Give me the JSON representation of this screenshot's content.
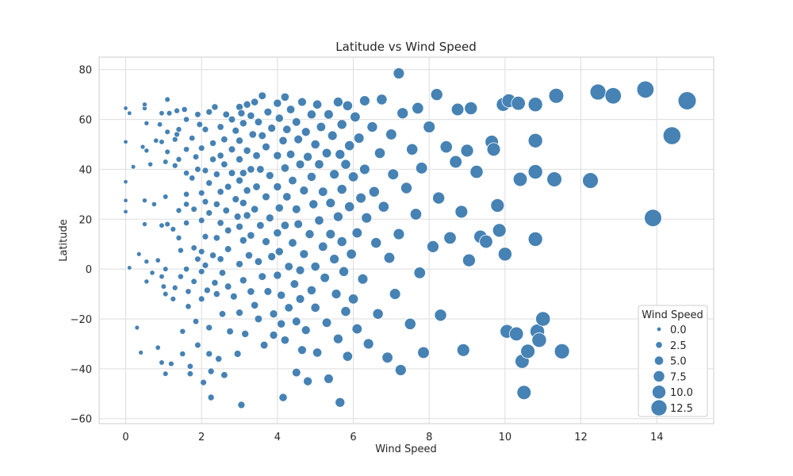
{
  "chart_data": {
    "type": "scatter",
    "title": "Latitude vs Wind Speed",
    "xlabel": "Wind Speed",
    "ylabel": "Latitude",
    "xlim": [
      -0.7,
      15.5
    ],
    "ylim": [
      -62,
      85
    ],
    "xticks": [
      0,
      2,
      4,
      6,
      8,
      10,
      12,
      14
    ],
    "yticks": [
      -60,
      -40,
      -20,
      0,
      20,
      40,
      60,
      80
    ],
    "xtick_labels": [
      "0",
      "2",
      "4",
      "6",
      "8",
      "10",
      "12",
      "14"
    ],
    "ytick_labels": [
      "−60",
      "−40",
      "−20",
      "0",
      "20",
      "40",
      "60",
      "80"
    ],
    "grid": true,
    "marker_color": "#4682b4",
    "size_encoding": "Wind Speed",
    "legend": {
      "title": "Wind Speed",
      "placement": "lower-right",
      "entries": [
        {
          "label": "0.0",
          "value": 0.0
        },
        {
          "label": "2.5",
          "value": 2.5
        },
        {
          "label": "5.0",
          "value": 5.0
        },
        {
          "label": "7.5",
          "value": 7.5
        },
        {
          "label": "10.0",
          "value": 10.0
        },
        {
          "label": "12.5",
          "value": 12.5
        }
      ]
    },
    "points": [
      [
        0.0,
        64.5
      ],
      [
        0.0,
        51.0
      ],
      [
        0.0,
        35.0
      ],
      [
        0.0,
        27.5
      ],
      [
        0.0,
        23.0
      ],
      [
        0.1,
        0.5
      ],
      [
        0.1,
        62.5
      ],
      [
        0.2,
        41.0
      ],
      [
        0.3,
        -23.5
      ],
      [
        0.35,
        6.0
      ],
      [
        0.4,
        -33.5
      ],
      [
        0.5,
        64.5
      ],
      [
        0.5,
        66.0
      ],
      [
        0.45,
        49.0
      ],
      [
        0.55,
        47.5
      ],
      [
        0.55,
        58.5
      ],
      [
        0.5,
        27.5
      ],
      [
        0.5,
        18.0
      ],
      [
        0.55,
        3.0
      ],
      [
        0.55,
        -5.0
      ],
      [
        0.65,
        42.0
      ],
      [
        0.7,
        -1.5
      ],
      [
        0.75,
        26.0
      ],
      [
        0.8,
        51.5
      ],
      [
        0.85,
        3.5
      ],
      [
        0.85,
        -31.5
      ],
      [
        0.9,
        58.0
      ],
      [
        0.95,
        62.5
      ],
      [
        0.95,
        51.0
      ],
      [
        0.95,
        17.5
      ],
      [
        0.95,
        -3.0
      ],
      [
        0.95,
        -37.5
      ],
      [
        1.0,
        -7.0
      ],
      [
        1.05,
        43.0
      ],
      [
        1.05,
        29.0
      ],
      [
        1.05,
        0.0
      ],
      [
        1.05,
        -10.0
      ],
      [
        1.05,
        -42.0
      ],
      [
        1.1,
        68.0
      ],
      [
        1.1,
        55.0
      ],
      [
        1.1,
        47.0
      ],
      [
        1.1,
        18.0
      ],
      [
        1.15,
        62.5
      ],
      [
        1.2,
        -38.0
      ],
      [
        1.25,
        16.0
      ],
      [
        1.25,
        -12.0
      ],
      [
        1.3,
        -7.5
      ],
      [
        1.3,
        52.0
      ],
      [
        1.3,
        41.5
      ],
      [
        1.35,
        63.5
      ],
      [
        1.35,
        54.0
      ],
      [
        1.4,
        56.0
      ],
      [
        1.4,
        44.0
      ],
      [
        1.4,
        23.5
      ],
      [
        1.4,
        12.5
      ],
      [
        1.45,
        7.5
      ],
      [
        1.45,
        -3.0
      ],
      [
        1.5,
        -25.0
      ],
      [
        1.5,
        -34.0
      ],
      [
        1.55,
        64.0
      ],
      [
        1.6,
        60.0
      ],
      [
        1.6,
        48.0
      ],
      [
        1.6,
        38.5
      ],
      [
        1.6,
        30.0
      ],
      [
        1.6,
        26.0
      ],
      [
        1.6,
        18.5
      ],
      [
        1.6,
        0.0
      ],
      [
        1.65,
        -9.0
      ],
      [
        1.65,
        -15.0
      ],
      [
        1.7,
        -39.0
      ],
      [
        1.7,
        -42.0
      ],
      [
        1.75,
        52.5
      ],
      [
        1.75,
        36.5
      ],
      [
        1.8,
        24.0
      ],
      [
        1.8,
        8.5
      ],
      [
        1.8,
        -5.0
      ],
      [
        1.85,
        45.0
      ],
      [
        1.85,
        -21.0
      ],
      [
        1.9,
        62.0
      ],
      [
        1.9,
        40.0
      ],
      [
        1.9,
        4.0
      ],
      [
        1.9,
        -30.5
      ],
      [
        1.95,
        58.0
      ],
      [
        2.0,
        48.5
      ],
      [
        2.0,
        30.5
      ],
      [
        2.0,
        19.5
      ],
      [
        2.0,
        7.0
      ],
      [
        2.0,
        -1.0
      ],
      [
        2.0,
        -12.0
      ],
      [
        2.05,
        -45.5
      ],
      [
        2.1,
        56.0
      ],
      [
        2.1,
        39.5
      ],
      [
        2.1,
        27.0
      ],
      [
        2.1,
        13.0
      ],
      [
        2.1,
        1.5
      ],
      [
        2.15,
        -8.5
      ],
      [
        2.2,
        63.0
      ],
      [
        2.2,
        34.5
      ],
      [
        2.2,
        22.5
      ],
      [
        2.2,
        -23.5
      ],
      [
        2.2,
        -34.0
      ],
      [
        2.25,
        -41.0
      ],
      [
        2.25,
        -51.5
      ],
      [
        2.3,
        50.5
      ],
      [
        2.3,
        44.0
      ],
      [
        2.3,
        5.5
      ],
      [
        2.35,
        65.0
      ],
      [
        2.35,
        -5.5
      ],
      [
        2.4,
        38.0
      ],
      [
        2.4,
        26.0
      ],
      [
        2.4,
        12.5
      ],
      [
        2.4,
        -10.0
      ],
      [
        2.45,
        -36.0
      ],
      [
        2.5,
        57.0
      ],
      [
        2.5,
        45.5
      ],
      [
        2.5,
        31.0
      ],
      [
        2.5,
        18.5
      ],
      [
        2.5,
        4.0
      ],
      [
        2.55,
        -1.5
      ],
      [
        2.55,
        -18.0
      ],
      [
        2.6,
        52.0
      ],
      [
        2.6,
        42.0
      ],
      [
        2.6,
        -42.5
      ],
      [
        2.65,
        62.0
      ],
      [
        2.65,
        23.5
      ],
      [
        2.7,
        33.0
      ],
      [
        2.7,
        15.5
      ],
      [
        2.7,
        8.0
      ],
      [
        2.7,
        -7.0
      ],
      [
        2.75,
        -25.0
      ],
      [
        2.8,
        60.0
      ],
      [
        2.8,
        48.0
      ],
      [
        2.8,
        38.5
      ],
      [
        2.85,
        -11.0
      ],
      [
        2.9,
        55.5
      ],
      [
        2.9,
        28.0
      ],
      [
        2.95,
        21.0
      ],
      [
        2.95,
        -34.0
      ],
      [
        3.0,
        65.0
      ],
      [
        3.0,
        51.5
      ],
      [
        3.0,
        44.0
      ],
      [
        3.0,
        35.5
      ],
      [
        3.0,
        17.0
      ],
      [
        3.0,
        2.0
      ],
      [
        3.0,
        -17.5
      ],
      [
        3.05,
        62.5
      ],
      [
        3.05,
        -54.5
      ],
      [
        3.1,
        58.5
      ],
      [
        3.1,
        38.5
      ],
      [
        3.1,
        26.5
      ],
      [
        3.1,
        11.5
      ],
      [
        3.1,
        -4.5
      ],
      [
        3.15,
        -26.0
      ],
      [
        3.2,
        66.0
      ],
      [
        3.2,
        47.5
      ],
      [
        3.2,
        31.5
      ],
      [
        3.2,
        21.5
      ],
      [
        3.25,
        5.5
      ],
      [
        3.3,
        61.5
      ],
      [
        3.3,
        40.0
      ],
      [
        3.3,
        13.5
      ],
      [
        3.3,
        -9.0
      ],
      [
        3.35,
        54.0
      ],
      [
        3.4,
        67.0
      ],
      [
        3.4,
        24.0
      ],
      [
        3.4,
        -14.5
      ],
      [
        3.45,
        45.5
      ],
      [
        3.45,
        33.0
      ],
      [
        3.5,
        59.0
      ],
      [
        3.5,
        3.0
      ],
      [
        3.5,
        -20.0
      ],
      [
        3.55,
        40.0
      ],
      [
        3.55,
        17.5
      ],
      [
        3.6,
        69.5
      ],
      [
        3.6,
        53.5
      ],
      [
        3.6,
        -3.0
      ],
      [
        3.65,
        -30.5
      ],
      [
        3.7,
        49.0
      ],
      [
        3.7,
        29.0
      ],
      [
        3.7,
        11.0
      ],
      [
        3.75,
        63.0
      ],
      [
        3.75,
        -9.0
      ],
      [
        3.8,
        37.5
      ],
      [
        3.8,
        20.5
      ],
      [
        3.85,
        56.5
      ],
      [
        3.85,
        5.0
      ],
      [
        3.9,
        -18.0
      ],
      [
        3.9,
        -26.5
      ],
      [
        4.0,
        66.5
      ],
      [
        4.0,
        45.5
      ],
      [
        4.0,
        33.0
      ],
      [
        4.0,
        14.5
      ],
      [
        4.0,
        -2.5
      ],
      [
        4.05,
        60.5
      ],
      [
        4.05,
        24.5
      ],
      [
        4.05,
        7.0
      ],
      [
        4.1,
        -10.5
      ],
      [
        4.1,
        -22.0
      ],
      [
        4.15,
        51.5
      ],
      [
        4.15,
        -51.5
      ],
      [
        4.2,
        69.0
      ],
      [
        4.2,
        40.5
      ],
      [
        4.2,
        17.5
      ],
      [
        4.2,
        -28.5
      ],
      [
        4.25,
        56.0
      ],
      [
        4.25,
        29.0
      ],
      [
        4.3,
        1.0
      ],
      [
        4.3,
        -15.5
      ],
      [
        4.35,
        64.0
      ],
      [
        4.35,
        46.0
      ],
      [
        4.4,
        35.5
      ],
      [
        4.4,
        10.5
      ],
      [
        4.45,
        -6.0
      ],
      [
        4.5,
        59.0
      ],
      [
        4.5,
        24.0
      ],
      [
        4.5,
        -21.0
      ],
      [
        4.5,
        -41.5
      ],
      [
        4.55,
        52.0
      ],
      [
        4.55,
        18.0
      ],
      [
        4.6,
        42.0
      ],
      [
        4.6,
        -0.5
      ],
      [
        4.6,
        -12.0
      ],
      [
        4.65,
        67.0
      ],
      [
        4.65,
        -32.5
      ],
      [
        4.7,
        31.5
      ],
      [
        4.7,
        6.0
      ],
      [
        4.75,
        55.0
      ],
      [
        4.75,
        -24.5
      ],
      [
        4.8,
        45.0
      ],
      [
        4.8,
        -45.0
      ],
      [
        4.85,
        14.0
      ],
      [
        4.9,
        62.0
      ],
      [
        4.9,
        37.0
      ],
      [
        4.9,
        -8.5
      ],
      [
        4.95,
        26.0
      ],
      [
        5.0,
        50.0
      ],
      [
        5.0,
        1.0
      ],
      [
        5.0,
        -15.5
      ],
      [
        5.05,
        66.0
      ],
      [
        5.05,
        -33.5
      ],
      [
        5.1,
        42.0
      ],
      [
        5.1,
        19.5
      ],
      [
        5.15,
        57.0
      ],
      [
        5.2,
        31.0
      ],
      [
        5.2,
        9.0
      ],
      [
        5.25,
        -3.5
      ],
      [
        5.3,
        46.5
      ],
      [
        5.3,
        -21.5
      ],
      [
        5.35,
        62.0
      ],
      [
        5.35,
        -44.0
      ],
      [
        5.4,
        26.5
      ],
      [
        5.4,
        14.0
      ],
      [
        5.45,
        53.5
      ],
      [
        5.5,
        38.0
      ],
      [
        5.5,
        4.0
      ],
      [
        5.55,
        -10.0
      ],
      [
        5.6,
        67.0
      ],
      [
        5.6,
        21.0
      ],
      [
        5.6,
        -28.0
      ],
      [
        5.65,
        46.0
      ],
      [
        5.65,
        -53.5
      ],
      [
        5.7,
        58.0
      ],
      [
        5.7,
        32.0
      ],
      [
        5.7,
        11.0
      ],
      [
        5.75,
        -1.0
      ],
      [
        5.8,
        42.0
      ],
      [
        5.8,
        -17.0
      ],
      [
        5.85,
        65.5
      ],
      [
        5.85,
        -35.0
      ],
      [
        5.9,
        49.5
      ],
      [
        5.9,
        25.0
      ],
      [
        5.95,
        6.0
      ],
      [
        6.0,
        37.0
      ],
      [
        6.0,
        -12.0
      ],
      [
        6.05,
        61.0
      ],
      [
        6.1,
        14.5
      ],
      [
        6.1,
        -24.0
      ],
      [
        6.15,
        52.5
      ],
      [
        6.2,
        28.5
      ],
      [
        6.25,
        -4.0
      ],
      [
        6.3,
        67.5
      ],
      [
        6.3,
        40.0
      ],
      [
        6.35,
        20.5
      ],
      [
        6.4,
        -30.0
      ],
      [
        6.5,
        57.0
      ],
      [
        6.55,
        31.0
      ],
      [
        6.6,
        10.5
      ],
      [
        6.65,
        -18.0
      ],
      [
        6.7,
        46.5
      ],
      [
        6.75,
        68.0
      ],
      [
        6.8,
        25.0
      ],
      [
        6.9,
        -35.5
      ],
      [
        6.95,
        4.5
      ],
      [
        7.0,
        54.0
      ],
      [
        7.05,
        38.0
      ],
      [
        7.1,
        -10.0
      ],
      [
        7.2,
        78.5
      ],
      [
        7.2,
        14.0
      ],
      [
        7.25,
        -40.5
      ],
      [
        7.3,
        62.5
      ],
      [
        7.4,
        32.5
      ],
      [
        7.5,
        -22.0
      ],
      [
        7.55,
        48.0
      ],
      [
        7.65,
        22.0
      ],
      [
        7.7,
        64.5
      ],
      [
        7.75,
        -1.5
      ],
      [
        7.8,
        40.5
      ],
      [
        7.85,
        -33.5
      ],
      [
        8.0,
        57.0
      ],
      [
        8.1,
        9.0
      ],
      [
        8.2,
        70.0
      ],
      [
        8.25,
        28.5
      ],
      [
        8.3,
        -18.5
      ],
      [
        8.45,
        49.0
      ],
      [
        8.55,
        12.5
      ],
      [
        8.7,
        43.0
      ],
      [
        8.75,
        64.0
      ],
      [
        8.85,
        23.0
      ],
      [
        8.9,
        -32.5
      ],
      [
        9.0,
        47.5
      ],
      [
        9.05,
        3.5
      ],
      [
        9.1,
        64.5
      ],
      [
        9.25,
        39.0
      ],
      [
        9.35,
        13.0
      ],
      [
        9.5,
        11.0
      ],
      [
        9.65,
        51.0
      ],
      [
        9.7,
        48.0
      ],
      [
        9.8,
        25.5
      ],
      [
        9.85,
        15.5
      ],
      [
        9.95,
        66.0
      ],
      [
        10.0,
        6.0
      ],
      [
        10.05,
        -25.0
      ],
      [
        10.1,
        67.5
      ],
      [
        10.3,
        -26.0
      ],
      [
        10.35,
        66.5
      ],
      [
        10.4,
        36.0
      ],
      [
        10.45,
        -37.0
      ],
      [
        10.5,
        -49.5
      ],
      [
        10.6,
        -33.0
      ],
      [
        10.8,
        66.0
      ],
      [
        10.8,
        51.5
      ],
      [
        10.8,
        39.0
      ],
      [
        10.8,
        12.0
      ],
      [
        10.85,
        -25.0
      ],
      [
        10.9,
        -28.5
      ],
      [
        11.0,
        -20.0
      ],
      [
        11.35,
        69.5
      ],
      [
        11.3,
        36.0
      ],
      [
        11.5,
        -33.0
      ],
      [
        12.25,
        35.5
      ],
      [
        12.45,
        71.0
      ],
      [
        12.85,
        69.5
      ],
      [
        13.7,
        72.0
      ],
      [
        13.9,
        20.5
      ],
      [
        14.4,
        53.5
      ],
      [
        14.8,
        67.5
      ]
    ]
  }
}
